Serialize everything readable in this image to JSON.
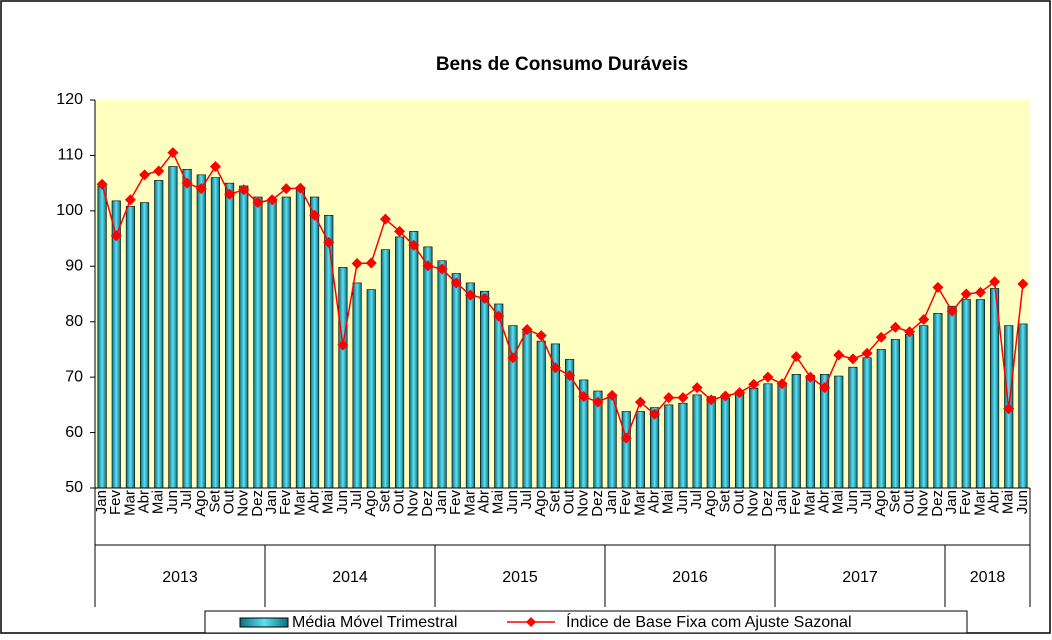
{
  "chart_data": {
    "type": "bar_line",
    "title": "Bens de Consumo Duráveis",
    "categories": [
      "Jan",
      "Fev",
      "Mar",
      "Abr",
      "Mai",
      "Jun",
      "Jul",
      "Ago",
      "Set",
      "Out",
      "Nov",
      "Dez",
      "Jan",
      "Fev",
      "Mar",
      "Abr",
      "Mai",
      "Jun",
      "Jul",
      "Ago",
      "Set",
      "Out",
      "Nov",
      "Dez",
      "Jan",
      "Fev",
      "Mar",
      "Abr",
      "Mai",
      "Jun",
      "Jul",
      "Ago",
      "Set",
      "Out",
      "Nov",
      "Dez",
      "Jan",
      "Fev",
      "Mar",
      "Abr",
      "Mai",
      "Jun",
      "Jul",
      "Ago",
      "Set",
      "Out",
      "Nov",
      "Dez",
      "Jan",
      "Fev",
      "Mar",
      "Abr",
      "Mai",
      "Jun",
      "Jul",
      "Ago",
      "Set",
      "Out",
      "Nov",
      "Dez",
      "Jan",
      "Fev",
      "Mar",
      "Abr",
      "Mai",
      "Jun"
    ],
    "year_groups": [
      "2013",
      "2014",
      "2015",
      "2016",
      "2017",
      "2018"
    ],
    "series": [
      {
        "name": "Média Móvel Trimestral",
        "type": "bar",
        "color": "#33c6d8",
        "values": [
          104.5,
          101.8,
          100.8,
          101.5,
          105.5,
          108,
          107.5,
          106.5,
          106,
          105,
          104.5,
          102.5,
          102,
          102.5,
          104,
          102.5,
          99.2,
          89.8,
          87,
          85.8,
          93,
          95.3,
          96.3,
          93.5,
          91,
          88.7,
          87,
          85.5,
          83.2,
          79.3,
          78.5,
          76.5,
          76,
          73.2,
          69.5,
          67.5,
          66.5,
          63.8,
          63.8,
          64.5,
          65,
          65.3,
          66.8,
          66.5,
          66.2,
          67,
          68,
          68.8,
          69,
          70.5,
          70.3,
          70.5,
          70.2,
          71.8,
          73.5,
          75,
          76.8,
          77.7,
          79.3,
          81.5,
          82.8,
          84,
          84,
          86,
          79.3,
          79.6
        ]
      },
      {
        "name": "Índice de Base Fixa com Ajuste Sazonal",
        "type": "line",
        "color": "#ff0000",
        "values": [
          104.8,
          95.5,
          102,
          106.5,
          107.2,
          110.5,
          105,
          104,
          108,
          103,
          103.8,
          101.5,
          102,
          104,
          104.1,
          99.2,
          94.3,
          75.8,
          90.5,
          90.6,
          98.5,
          96.3,
          93.8,
          90.1,
          89.5,
          87,
          84.8,
          84.2,
          81,
          73.5,
          78.6,
          77.5,
          71.7,
          70.3,
          66.5,
          65.5,
          66.7,
          59,
          65.5,
          63.3,
          66.3,
          66.3,
          68.1,
          65.9,
          66.6,
          67.2,
          68.7,
          70,
          68.8,
          73.7,
          70,
          68.1,
          74,
          73.3,
          74.3,
          77.2,
          79,
          78.2,
          80.4,
          86.2,
          81.9,
          85,
          85.3,
          87.2,
          64.3,
          86.8
        ]
      }
    ],
    "ylim": [
      50,
      120
    ],
    "yticks": [
      50,
      60,
      70,
      80,
      90,
      100,
      110,
      120
    ],
    "grid": false,
    "background": "#ffffc0"
  }
}
